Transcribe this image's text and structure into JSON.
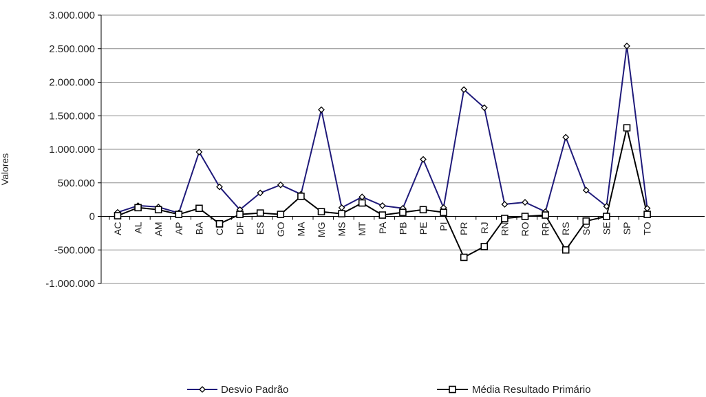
{
  "chart_data": {
    "type": "line",
    "title": "",
    "xlabel": "",
    "ylabel": "Valores",
    "ylim": [
      -1000000,
      3000000
    ],
    "yticks": [
      3000000,
      2500000,
      2000000,
      1500000,
      1000000,
      500000,
      0,
      -500000,
      -1000000
    ],
    "ytick_labels": [
      "3.000.000",
      "2.500.000",
      "2.000.000",
      "1.500.000",
      "1.000.000",
      "500.000",
      "0",
      "-500.000",
      "-1.000.000"
    ],
    "grid": "horizontal",
    "legend_position": "bottom",
    "categories": [
      "AC",
      "AL",
      "AM",
      "AP",
      "BA",
      "CE",
      "DF",
      "ES",
      "GO",
      "MA",
      "MG",
      "MS",
      "MT",
      "PA",
      "PB",
      "PE",
      "PI",
      "PR",
      "RJ",
      "RN",
      "RO",
      "RR",
      "RS",
      "SC",
      "SE",
      "SP",
      "TO"
    ],
    "series": [
      {
        "name": "Desvio Padrão",
        "color": "#1f1a7a",
        "marker": "diamond",
        "values": [
          60000,
          160000,
          140000,
          50000,
          960000,
          440000,
          100000,
          350000,
          470000,
          330000,
          1590000,
          130000,
          290000,
          160000,
          120000,
          850000,
          130000,
          1890000,
          1620000,
          180000,
          210000,
          70000,
          1180000,
          390000,
          150000,
          2540000,
          120000
        ]
      },
      {
        "name": "Média Resultado Primário",
        "color": "#000000",
        "marker": "square",
        "values": [
          10000,
          130000,
          100000,
          30000,
          120000,
          -110000,
          30000,
          50000,
          30000,
          300000,
          70000,
          40000,
          200000,
          20000,
          60000,
          100000,
          60000,
          -610000,
          -450000,
          -30000,
          0,
          20000,
          -500000,
          -70000,
          0,
          1320000,
          30000
        ]
      }
    ]
  }
}
